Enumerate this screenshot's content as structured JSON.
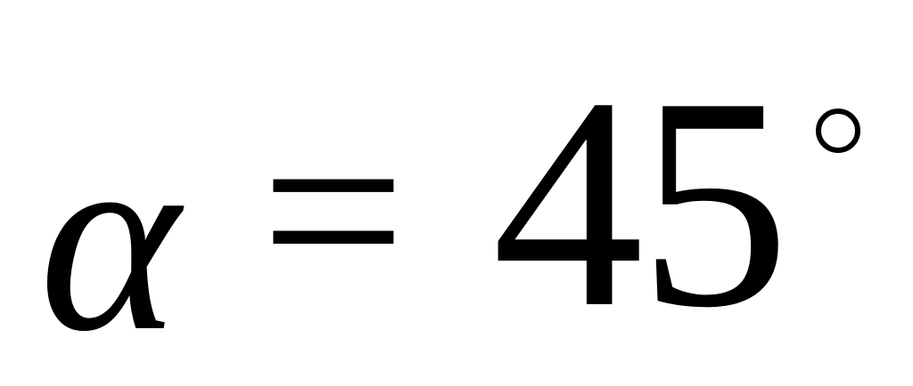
{
  "formula": {
    "variable": "α",
    "operator": "=",
    "value": "45",
    "unit": "°"
  }
}
